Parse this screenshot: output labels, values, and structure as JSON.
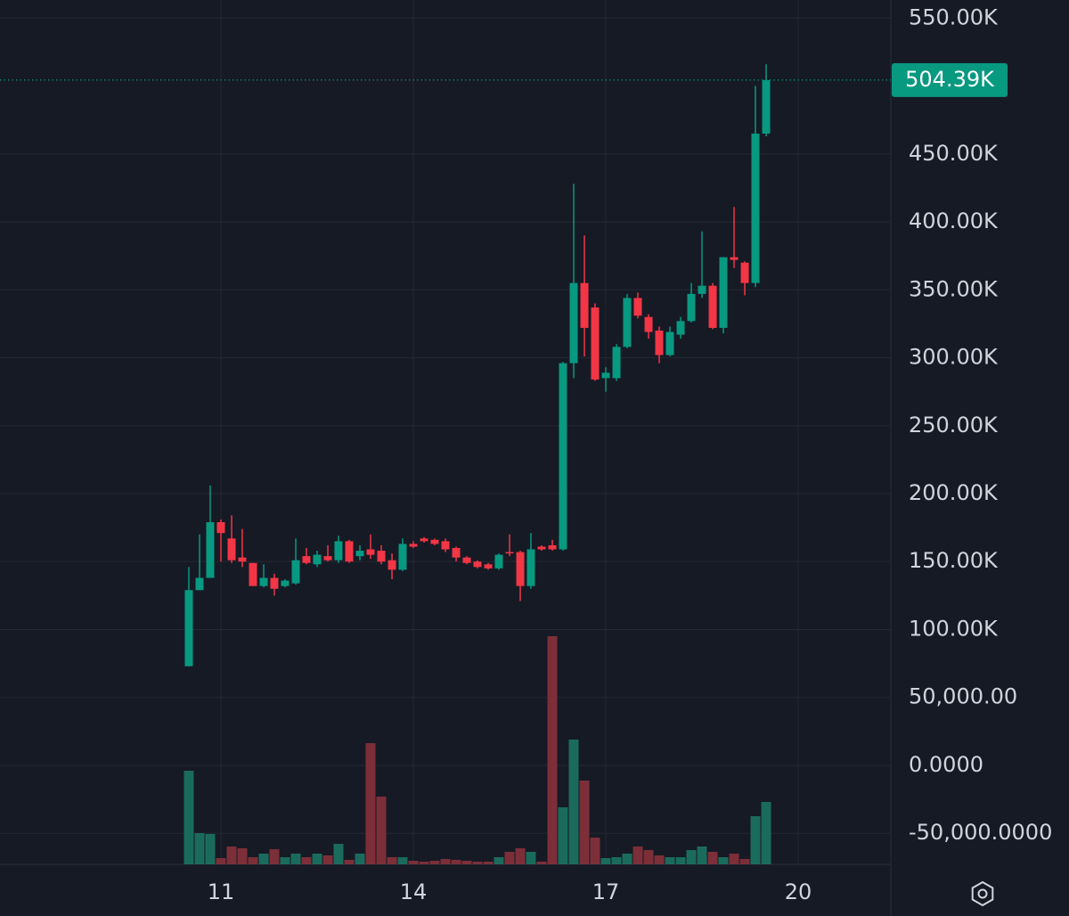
{
  "chart_data": {
    "type": "candlestick",
    "x": [
      10.5,
      10.667,
      10.833,
      11,
      11.167,
      11.333,
      11.5,
      11.667,
      11.833,
      12,
      12.167,
      12.333,
      12.5,
      12.667,
      12.833,
      13,
      13.167,
      13.333,
      13.5,
      13.667,
      13.833,
      14,
      14.167,
      14.333,
      14.5,
      14.667,
      14.833,
      15,
      15.167,
      15.333,
      15.5,
      15.667,
      15.833,
      16,
      16.167,
      16.333,
      16.5,
      16.667,
      16.833,
      17,
      17.167,
      17.333,
      17.5,
      17.667,
      17.833,
      18,
      18.167,
      18.333,
      18.5,
      18.667,
      18.833,
      19,
      19.167,
      19.333,
      19.5
    ],
    "open": [
      73000,
      129000,
      138000,
      179000,
      167000,
      153000,
      149000,
      132000,
      138000,
      132000,
      134000,
      154000,
      148000,
      154000,
      151000,
      165000,
      154000,
      159000,
      158000,
      151000,
      144000,
      163000,
      167000,
      166000,
      165000,
      160000,
      153000,
      150000,
      148000,
      145000,
      157000,
      157000,
      132000,
      161000,
      162000,
      159000,
      296000,
      355000,
      337000,
      285000,
      285000,
      308000,
      344000,
      330000,
      320000,
      302000,
      317000,
      327000,
      347000,
      353000,
      322000,
      374000,
      370000,
      355000,
      465000
    ],
    "high": [
      146000,
      170000,
      206000,
      181000,
      184000,
      174000,
      149000,
      148000,
      141000,
      137000,
      167000,
      160000,
      158000,
      162000,
      169000,
      166000,
      162000,
      170000,
      162000,
      156000,
      167000,
      165000,
      168000,
      167000,
      167000,
      161000,
      154000,
      151000,
      149000,
      156000,
      170000,
      158000,
      171000,
      162000,
      166000,
      297000,
      428000,
      390000,
      340000,
      293000,
      310000,
      347000,
      348000,
      332000,
      323000,
      323000,
      330000,
      355000,
      393000,
      355000,
      374000,
      411000,
      371000,
      500000,
      516000
    ],
    "low": [
      73000,
      129000,
      138000,
      150000,
      149000,
      146000,
      132000,
      131000,
      125000,
      131000,
      133000,
      148000,
      146000,
      150000,
      149000,
      149000,
      151000,
      152000,
      148000,
      137000,
      143000,
      160000,
      164000,
      162000,
      157000,
      150000,
      148000,
      145000,
      144000,
      144000,
      154000,
      121000,
      130000,
      158000,
      158000,
      158000,
      285000,
      301000,
      283000,
      275000,
      283000,
      307000,
      329000,
      314000,
      296000,
      301000,
      314000,
      326000,
      344000,
      321000,
      318000,
      366000,
      346000,
      352000,
      463000
    ],
    "close": [
      129000,
      138000,
      179000,
      171000,
      151000,
      150000,
      132000,
      138000,
      130000,
      136000,
      151000,
      149000,
      155000,
      151000,
      165000,
      150000,
      158000,
      155000,
      150000,
      144000,
      163000,
      161000,
      165000,
      163000,
      159000,
      153000,
      149000,
      146000,
      145000,
      155000,
      156000,
      132000,
      159000,
      159000,
      159000,
      296000,
      355000,
      322000,
      284000,
      289000,
      308000,
      344000,
      331000,
      319000,
      302000,
      319000,
      327000,
      347000,
      353000,
      322000,
      374000,
      372000,
      355000,
      465000,
      504390
    ],
    "volume": [
      105,
      35,
      34,
      7,
      20,
      18,
      8,
      12,
      17,
      8,
      12,
      8,
      12,
      10,
      23,
      5,
      12,
      136,
      76,
      8,
      8,
      4,
      3,
      4,
      6,
      5,
      4,
      3,
      3,
      8,
      14,
      18,
      14,
      3,
      256,
      64,
      140,
      94,
      30,
      7,
      8,
      12,
      20,
      16,
      10,
      8,
      8,
      16,
      20,
      14,
      8,
      12,
      6,
      54,
      70
    ],
    "up_color": "#089981",
    "down_color": "#f23645",
    "volume_up_color": "#1b6b5c",
    "volume_down_color": "#7c2f38",
    "xlim": [
      7.556,
      21.444
    ],
    "xticks": [
      11,
      14,
      17,
      20
    ],
    "ylim": [
      -72800,
      563300
    ],
    "yticks": [
      {
        "value": 550000,
        "label": "550.00K"
      },
      {
        "value": 450000,
        "label": "450.00K"
      },
      {
        "value": 400000,
        "label": "400.00K"
      },
      {
        "value": 350000,
        "label": "350.00K"
      },
      {
        "value": 300000,
        "label": "300.00K"
      },
      {
        "value": 250000,
        "label": "250.00K"
      },
      {
        "value": 200000,
        "label": "200.00K"
      },
      {
        "value": 150000,
        "label": "150.00K"
      },
      {
        "value": 100000,
        "label": "100.00K"
      },
      {
        "value": 50000,
        "label": "50,000.00"
      },
      {
        "value": 0,
        "label": "0.0000"
      },
      {
        "value": -50000,
        "label": "-50,000.0000"
      }
    ],
    "grid": true,
    "last_price": {
      "value": 504390,
      "label": "504.39K"
    }
  }
}
